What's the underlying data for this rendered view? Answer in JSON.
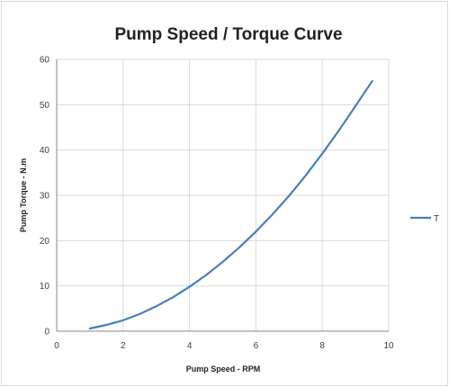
{
  "chart_data": {
    "type": "line",
    "title": "Pump Speed / Torque Curve",
    "xlabel": "Pump Speed - RPM",
    "ylabel": "Pump Torque - N.m",
    "xlim": [
      0,
      10
    ],
    "ylim": [
      0,
      60
    ],
    "x_ticks": [
      "0",
      "2",
      "4",
      "6",
      "8",
      "10"
    ],
    "y_ticks": [
      "0",
      "10",
      "20",
      "30",
      "40",
      "50",
      "60"
    ],
    "grid": true,
    "legend_position": "right",
    "series": [
      {
        "name": "T",
        "color": "#4a7ebb",
        "x": [
          1,
          1.5,
          2,
          2.5,
          3,
          3.5,
          4,
          4.5,
          5,
          5.5,
          6,
          6.5,
          7,
          7.5,
          8,
          8.5,
          9,
          9.5
        ],
        "y": [
          0.6,
          1.4,
          2.4,
          3.8,
          5.5,
          7.5,
          9.8,
          12.4,
          15.3,
          18.5,
          22.0,
          25.8,
          29.9,
          34.4,
          39.2,
          44.3,
          49.7,
          55.2
        ]
      }
    ]
  }
}
